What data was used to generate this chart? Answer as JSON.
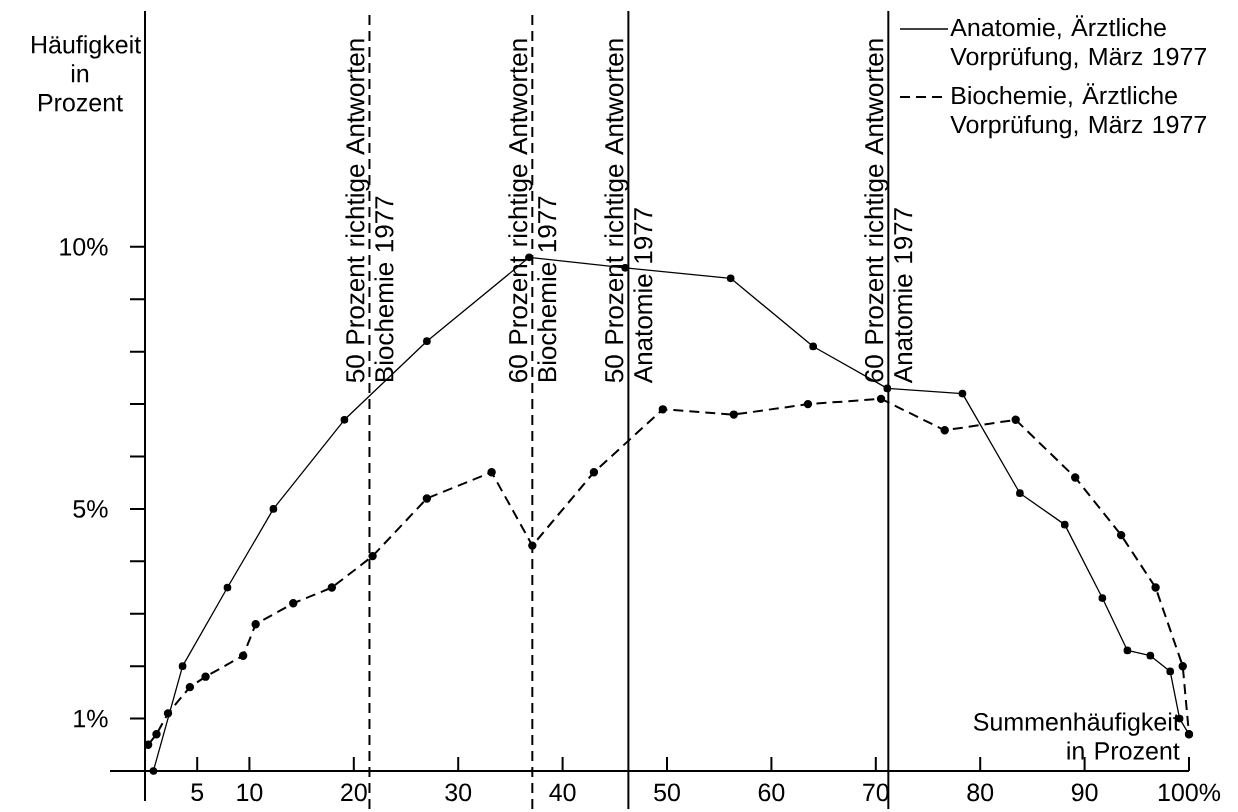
{
  "chart_data": {
    "type": "line",
    "xlabel": "Summenhäufigkeit in Prozent",
    "ylabel": "Häufigkeit in Prozent",
    "xlim": [
      0,
      100
    ],
    "ylim": [
      0,
      14.5
    ],
    "xticks": [
      5,
      10,
      20,
      30,
      40,
      50,
      60,
      70,
      80,
      90,
      {
        "value": 100,
        "label": "100%"
      }
    ],
    "yticks": [
      {
        "value": 1,
        "label": "1%"
      },
      {
        "value": 2,
        "label": null
      },
      {
        "value": 3,
        "label": null
      },
      {
        "value": 4,
        "label": null
      },
      {
        "value": 5,
        "label": "5%"
      },
      {
        "value": 6,
        "label": null
      },
      {
        "value": 7,
        "label": null
      },
      {
        "value": 8,
        "label": null
      },
      {
        "value": 9,
        "label": null
      },
      {
        "value": 10,
        "label": "10%"
      }
    ],
    "marker": "circle",
    "legend": "top right",
    "series": [
      {
        "name": "Anatomie, Ärztliche Vorprüfung, März 1977",
        "color": "#000000",
        "line_style": "solid",
        "x": [
          0.8,
          3.6,
          7.9,
          12.3,
          19.1,
          27.0,
          36.8,
          46.0,
          56.1,
          64.0,
          71.1,
          78.3,
          83.8,
          88.1,
          91.7,
          94.1,
          96.3,
          98.2,
          99.1,
          100
        ],
        "values": [
          0,
          2.0,
          3.5,
          5.0,
          6.7,
          8.2,
          9.8,
          9.6,
          9.4,
          8.1,
          7.3,
          7.2,
          5.3,
          4.7,
          3.3,
          2.3,
          2.2,
          1.9,
          1.0,
          0.7
        ]
      },
      {
        "name": "Biochemie, Ärztliche Vorprüfung, März 1977",
        "color": "#000000",
        "line_style": "dashed",
        "x": [
          0.3,
          1.1,
          2.2,
          4.3,
          5.8,
          9.4,
          10.6,
          14.2,
          17.9,
          21.8,
          27.0,
          33.2,
          37.1,
          43.0,
          49.6,
          56.4,
          63.5,
          70.5,
          76.6,
          83.4,
          89.1,
          93.5,
          96.8,
          99.4,
          100
        ],
        "values": [
          0.5,
          0.7,
          1.1,
          1.6,
          1.8,
          2.2,
          2.8,
          3.2,
          3.5,
          4.1,
          5.2,
          5.7,
          4.3,
          5.7,
          6.9,
          6.8,
          7.0,
          7.1,
          6.5,
          6.7,
          5.6,
          4.5,
          3.5,
          2.0,
          0.7
        ]
      }
    ],
    "ref_lines": [
      {
        "axis": "x",
        "value": 21.5,
        "label": "50 Prozent richtige Antworten Biochemie 1977",
        "line_style": "dashed",
        "color": "#000000"
      },
      {
        "axis": "x",
        "value": 37.1,
        "label": "60 Prozent richtige Antworten Biochemie 1977",
        "line_style": "dashed",
        "color": "#000000"
      },
      {
        "axis": "x",
        "value": 46.3,
        "label": "50 Prozent richtige Antworten Anatomie 1977",
        "line_style": "solid",
        "color": "#000000"
      },
      {
        "axis": "x",
        "value": 71.2,
        "label": "60 Prozent richtige Antworten Anatomie 1977",
        "line_style": "solid",
        "color": "#000000"
      }
    ]
  }
}
